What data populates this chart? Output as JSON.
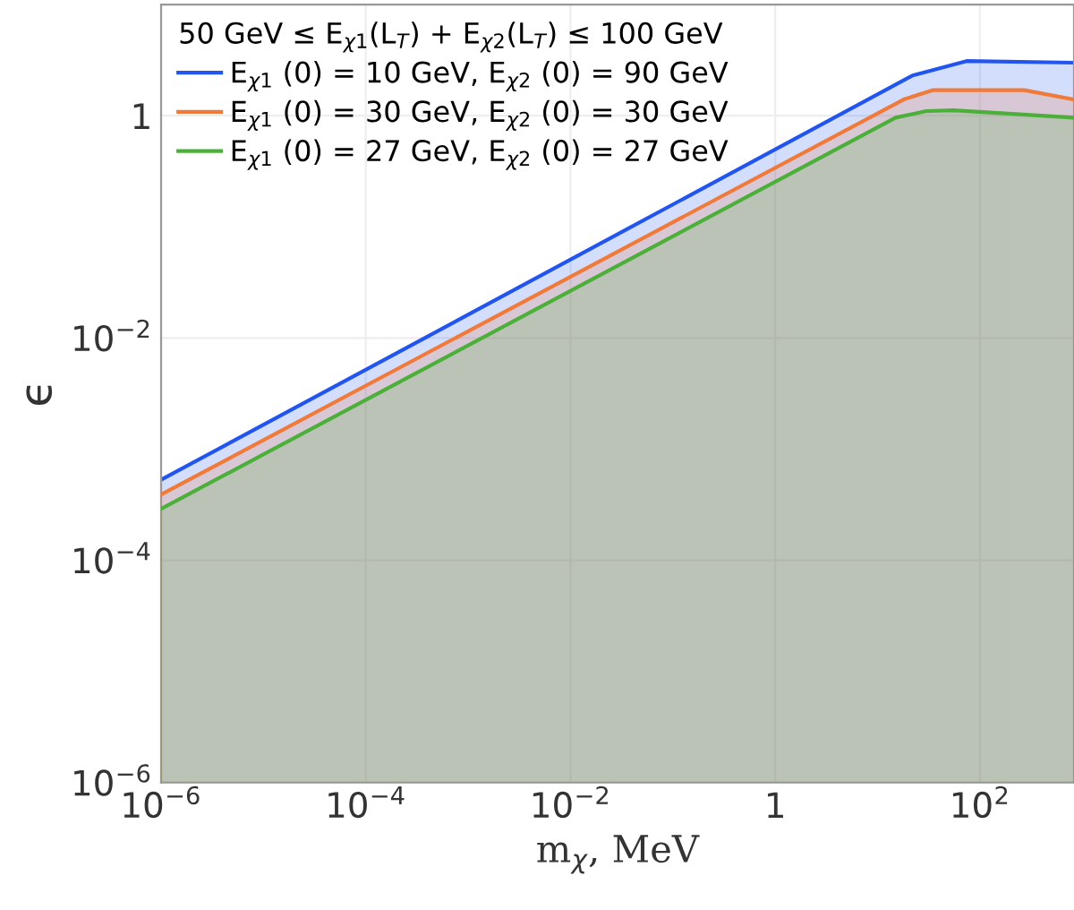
{
  "chart_data": {
    "type": "area",
    "xlabel": "m$_{χ}$, MeV",
    "ylabel": "ϵ",
    "log": "xy",
    "grid": true,
    "legend": "top left",
    "legend_title": "50 GeV ≤ E$_{χ1}$(L$_{T}$) + E$_{χ2}$(L$_{T}$) ≤ 100 GeV",
    "xlim": [
      1e-06,
      830
    ],
    "ylim": [
      1e-06,
      10
    ],
    "xticks": [
      {
        "value": 1e-06,
        "label": "10$^{−6}$"
      },
      {
        "value": 0.0001,
        "label": "10$^{−4}$"
      },
      {
        "value": 0.01,
        "label": "10$^{−2}$"
      },
      1,
      {
        "value": 100,
        "label": "10$^{2}$"
      }
    ],
    "yticks": [
      {
        "value": 1e-06,
        "label": "10$^{−6}$"
      },
      {
        "value": 0.0001,
        "label": "10$^{−4}$"
      },
      {
        "value": 0.01,
        "label": "10$^{−2}$"
      },
      1
    ],
    "series": [
      {
        "name": "E$_{χ1}$ (0) = 10 GeV, E$_{χ2}$ (0) = 90 GeV",
        "color": "#2255ee",
        "x": [
          1e-06,
          22,
          74,
          830
        ],
        "values": [
          0.00053,
          2.3,
          3.1,
          3.0
        ]
      },
      {
        "name": "E$_{χ1}$ (0) = 30 GeV, E$_{χ2}$ (0) = 30 GeV",
        "color": "#f07a3a",
        "x": [
          1e-06,
          18,
          35,
          270,
          830
        ],
        "values": [
          0.00039,
          1.4,
          1.7,
          1.7,
          1.4
        ]
      },
      {
        "name": "E$_{χ1}$ (0) = 27 GeV, E$_{χ2}$ (0) = 27 GeV",
        "color": "#4caf3a",
        "x": [
          1e-06,
          15,
          30,
          55,
          830
        ],
        "values": [
          0.00029,
          0.96,
          1.1,
          1.12,
          0.96
        ]
      }
    ]
  }
}
